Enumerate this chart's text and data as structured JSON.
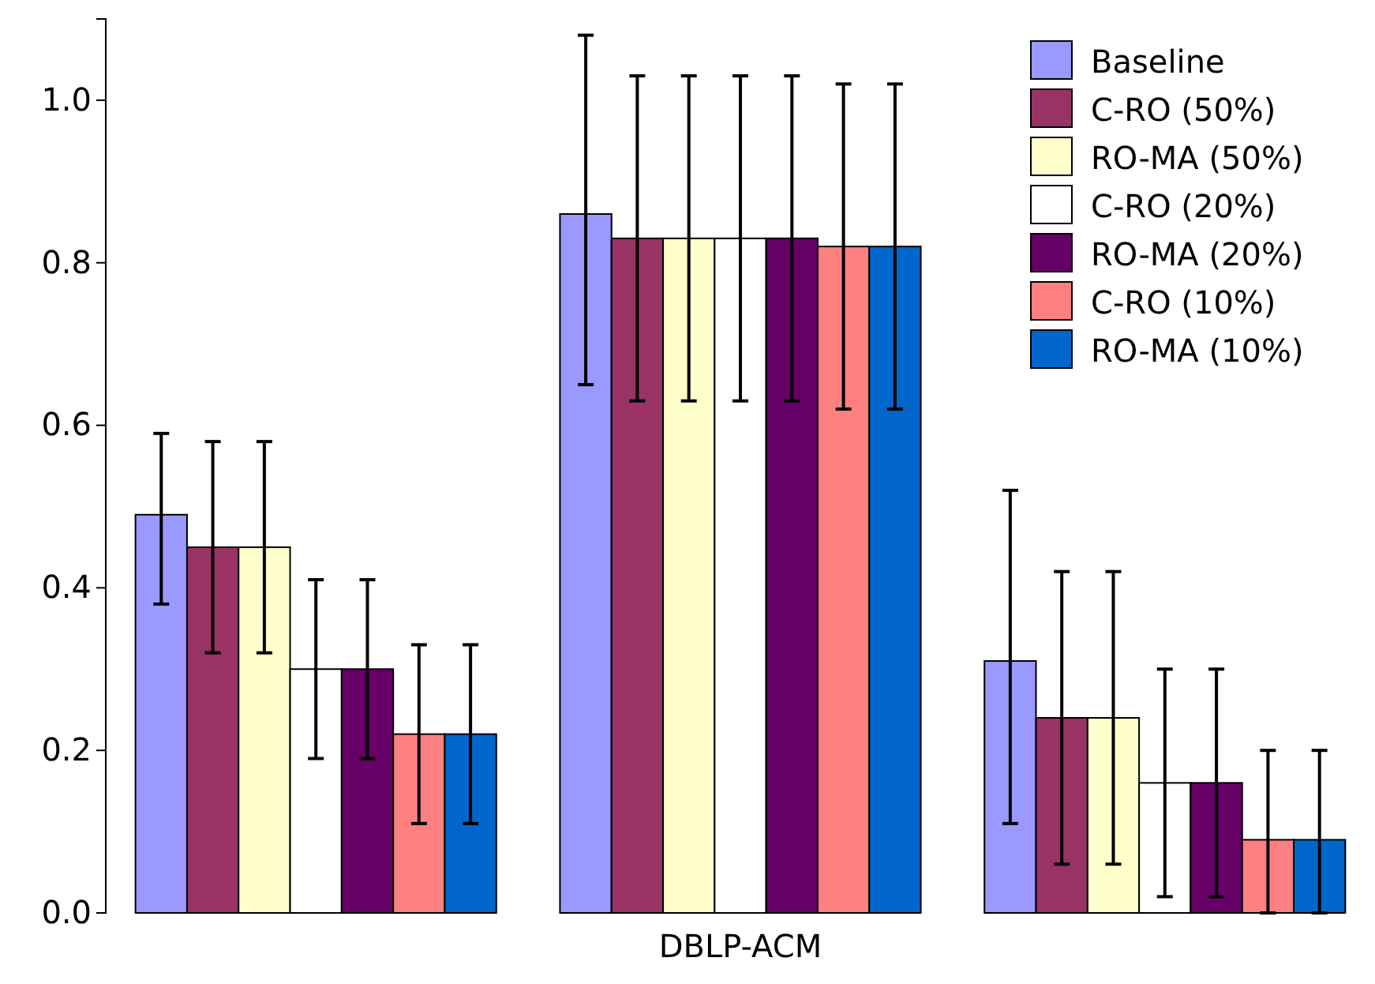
{
  "chart_data": {
    "type": "bar",
    "categories": [
      null,
      "DBLP-ACM",
      null
    ],
    "series": [
      {
        "name": "Baseline",
        "color": "#9999ff",
        "values": [
          0.49,
          0.86,
          0.31
        ],
        "errors": [
          [
            0.38,
            0.59
          ],
          [
            0.65,
            1.08
          ],
          [
            0.11,
            0.52
          ]
        ]
      },
      {
        "name": "C-RO (50%)",
        "color": "#993366",
        "values": [
          0.45,
          0.83,
          0.24
        ],
        "errors": [
          [
            0.32,
            0.58
          ],
          [
            0.63,
            1.03
          ],
          [
            0.06,
            0.42
          ]
        ]
      },
      {
        "name": "RO-MA (50%)",
        "color": "#ffffcc",
        "values": [
          0.45,
          0.83,
          0.24
        ],
        "errors": [
          [
            0.32,
            0.58
          ],
          [
            0.63,
            1.03
          ],
          [
            0.06,
            0.42
          ]
        ]
      },
      {
        "name": "C-RO (20%)",
        "color": "#ffffff",
        "values": [
          0.3,
          0.83,
          0.16
        ],
        "errors": [
          [
            0.19,
            0.41
          ],
          [
            0.63,
            1.03
          ],
          [
            0.02,
            0.3
          ]
        ]
      },
      {
        "name": "RO-MA (20%)",
        "color": "#660066",
        "values": [
          0.3,
          0.83,
          0.16
        ],
        "errors": [
          [
            0.19,
            0.41
          ],
          [
            0.63,
            1.03
          ],
          [
            0.02,
            0.3
          ]
        ]
      },
      {
        "name": "C-RO (10%)",
        "color": "#ff8080",
        "values": [
          0.22,
          0.82,
          0.09
        ],
        "errors": [
          [
            0.11,
            0.33
          ],
          [
            0.62,
            1.02
          ],
          [
            0,
            0.2
          ]
        ]
      },
      {
        "name": "RO-MA (10%)",
        "color": "#0066cc",
        "values": [
          0.22,
          0.82,
          0.09
        ],
        "errors": [
          [
            0.11,
            0.33
          ],
          [
            0.62,
            1.02
          ],
          [
            0,
            0.2
          ]
        ]
      }
    ],
    "ylim": [
      0,
      1.1
    ],
    "yticks": [
      "0.0",
      0.2,
      0.4,
      0.6,
      0.8,
      "1.0"
    ],
    "grid": false,
    "legend": "top right"
  }
}
